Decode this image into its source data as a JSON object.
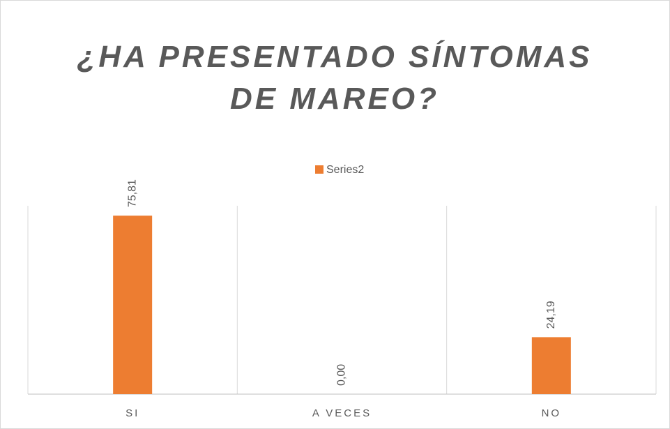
{
  "chart_data": {
    "type": "bar",
    "title": "¿HA PRESENTADO SÍNTOMAS DE MAREO?",
    "categories": [
      "SI",
      "A VECES",
      "NO"
    ],
    "series": [
      {
        "name": "Series2",
        "color": "#ed7d31",
        "values": [
          75.81,
          0,
          24.19
        ],
        "value_labels": [
          "75,81",
          "0,00",
          "24,19"
        ]
      }
    ],
    "ylim": [
      0,
      80
    ],
    "legend": "top"
  }
}
